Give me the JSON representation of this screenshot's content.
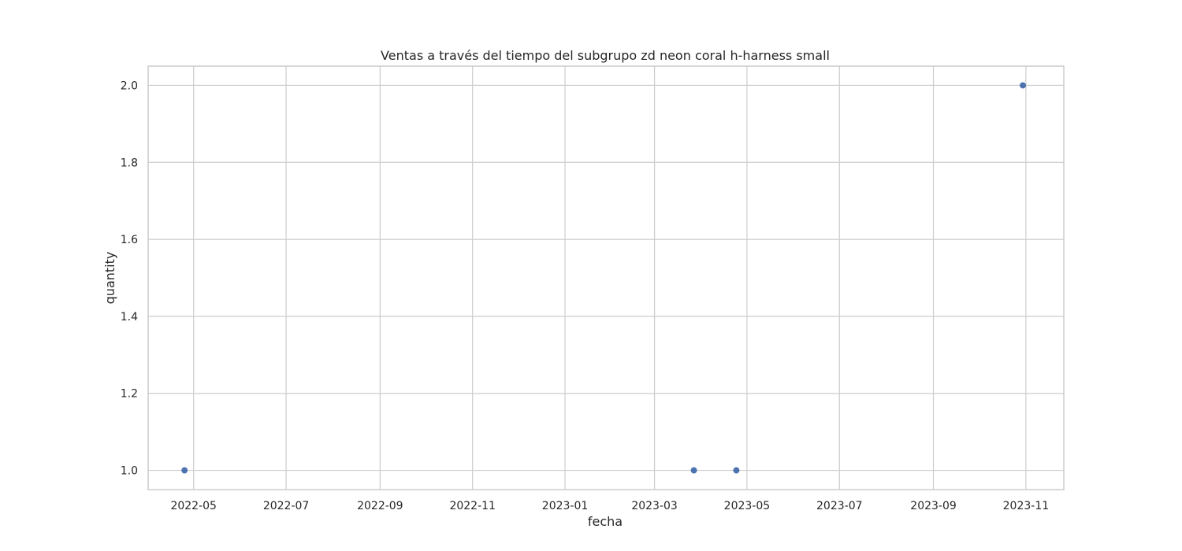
{
  "chart_data": {
    "type": "scatter",
    "title": "Ventas a través del tiempo del subgrupo zd neon coral h-harness small",
    "xlabel": "fecha",
    "ylabel": "quantity",
    "x_axis_type": "date",
    "xlim": [
      "2022-04-01",
      "2023-11-26"
    ],
    "ylim": [
      0.95,
      2.05
    ],
    "x_ticks": [
      "2022-05",
      "2022-07",
      "2022-09",
      "2022-11",
      "2023-01",
      "2023-03",
      "2023-05",
      "2023-07",
      "2023-09",
      "2023-11"
    ],
    "y_ticks": [
      "1.0",
      "1.2",
      "1.4",
      "1.6",
      "1.8",
      "2.0"
    ],
    "grid": true,
    "points": [
      {
        "x": "2022-04-25",
        "y": 1
      },
      {
        "x": "2023-03-27",
        "y": 1
      },
      {
        "x": "2023-04-24",
        "y": 1
      },
      {
        "x": "2023-10-30",
        "y": 2
      }
    ],
    "colors": {
      "marker": "#4c72b0",
      "grid": "#cccccc"
    }
  }
}
